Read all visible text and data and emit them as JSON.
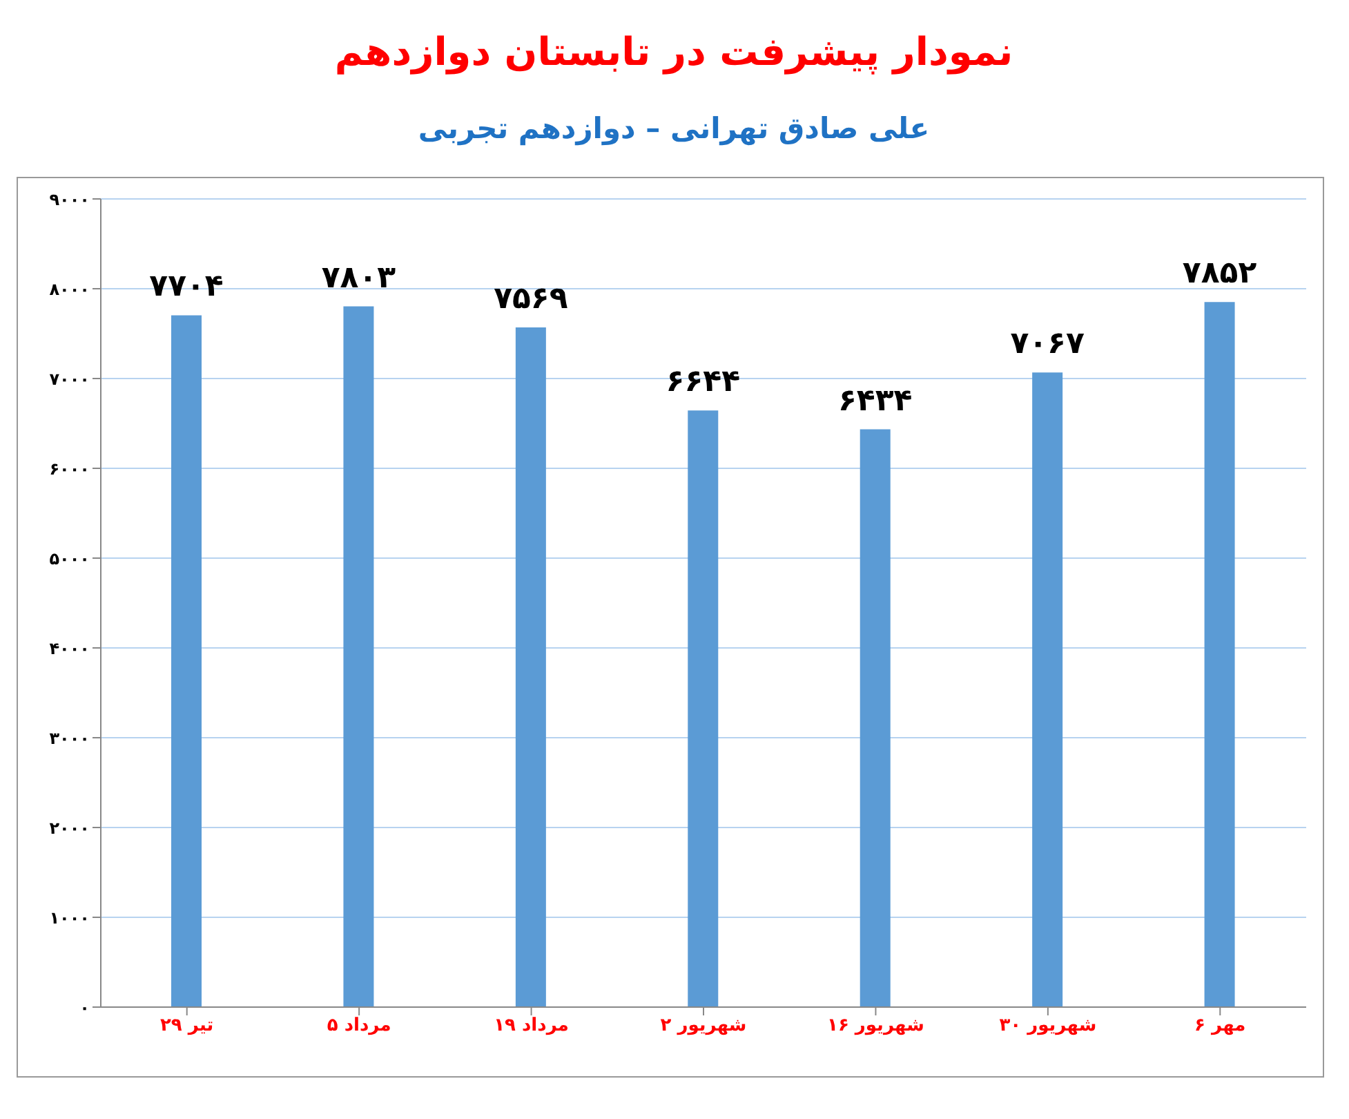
{
  "chart_data": {
    "type": "bar",
    "title": "نمودار پیشرفت در تابستان دوازدهم",
    "subtitle": "علی صادق تهرانی – دوازدهم تجربی",
    "categories": [
      "۲۹ تیر",
      "۵ مرداد",
      "۱۹ مرداد",
      "۲ شهریور",
      "۱۶ شهریور",
      "۳۰ شهریور",
      "۶ مهر"
    ],
    "values": [
      7704,
      7803,
      7569,
      6644,
      6434,
      7067,
      7852
    ],
    "value_labels": [
      "۷۷۰۴",
      "۷۸۰۳",
      "۷۵۶۹",
      "۶۶۴۴",
      "۶۴۳۴",
      "۷۰۶۷",
      "۷۸۵۲"
    ],
    "color": "#5b9bd5",
    "ylim": [
      0,
      9000
    ],
    "yticks": [
      {
        "value": 0,
        "label": "۰"
      },
      {
        "value": 1000,
        "label": "۱۰۰۰"
      },
      {
        "value": 2000,
        "label": "۲۰۰۰"
      },
      {
        "value": 3000,
        "label": "۳۰۰۰"
      },
      {
        "value": 4000,
        "label": "۴۰۰۰"
      },
      {
        "value": 5000,
        "label": "۵۰۰۰"
      },
      {
        "value": 6000,
        "label": "۶۰۰۰"
      },
      {
        "value": 7000,
        "label": "۷۰۰۰"
      },
      {
        "value": 8000,
        "label": "۸۰۰۰"
      },
      {
        "value": 9000,
        "label": "۹۰۰۰"
      }
    ],
    "grid": "y",
    "legend": false
  }
}
